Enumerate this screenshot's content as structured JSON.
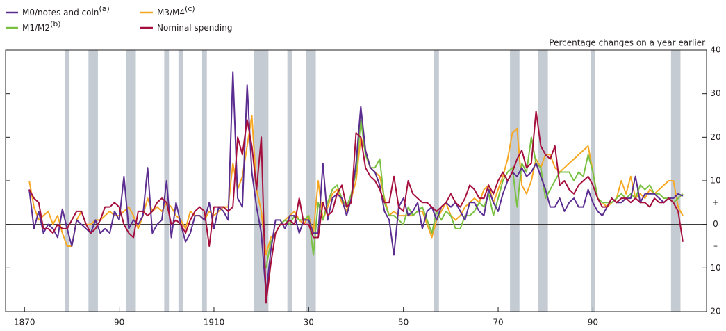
{
  "chart_data": {
    "type": "line",
    "y_axis_label": "Percentage changes on a year earlier",
    "xlim": [
      1866,
      2014
    ],
    "xticks": [
      {
        "value": 1870,
        "label": "1870"
      },
      {
        "value": 1890,
        "label": "90"
      },
      {
        "value": 1910,
        "label": "1910"
      },
      {
        "value": 1930,
        "label": "30"
      },
      {
        "value": 1950,
        "label": "50"
      },
      {
        "value": 1970,
        "label": "70"
      },
      {
        "value": 1990,
        "label": "90"
      }
    ],
    "ylim": [
      -20,
      40
    ],
    "yticks": [
      40,
      30,
      20,
      10,
      0,
      {
        "value": -10,
        "label": "10"
      },
      {
        "value": -20,
        "label": "20"
      }
    ],
    "sign_labels": [
      {
        "value": 5,
        "label": "+"
      },
      {
        "value": -5,
        "label": "–"
      }
    ],
    "shading_color": "#c4cbd2",
    "shaded_periods": [
      [
        1878.5,
        1879.5
      ],
      [
        1883.5,
        1885.5
      ],
      [
        1891.5,
        1893.5
      ],
      [
        1899.5,
        1900.5
      ],
      [
        1902.5,
        1903.5
      ],
      [
        1907.5,
        1908.5
      ],
      [
        1918.5,
        1921.5
      ],
      [
        1925.5,
        1926.5
      ],
      [
        1929.5,
        1931.5
      ],
      [
        1956.5,
        1957.5
      ],
      [
        1972.5,
        1974.5
      ],
      [
        1978.5,
        1980.5
      ],
      [
        1989.5,
        1990.5
      ],
      [
        2006.5,
        2008.5
      ]
    ],
    "x": [
      1871,
      1872,
      1873,
      1874,
      1875,
      1876,
      1877,
      1878,
      1879,
      1880,
      1881,
      1882,
      1883,
      1884,
      1885,
      1886,
      1887,
      1888,
      1889,
      1890,
      1891,
      1892,
      1893,
      1894,
      1895,
      1896,
      1897,
      1898,
      1899,
      1900,
      1901,
      1902,
      1903,
      1904,
      1905,
      1906,
      1907,
      1908,
      1909,
      1910,
      1911,
      1912,
      1913,
      1914,
      1915,
      1916,
      1917,
      1918,
      1919,
      1920,
      1921,
      1922,
      1923,
      1924,
      1925,
      1926,
      1927,
      1928,
      1929,
      1930,
      1931,
      1932,
      1933,
      1934,
      1935,
      1936,
      1937,
      1938,
      1939,
      1940,
      1941,
      1942,
      1943,
      1944,
      1945,
      1946,
      1947,
      1948,
      1949,
      1950,
      1951,
      1952,
      1953,
      1954,
      1955,
      1956,
      1957,
      1958,
      1959,
      1960,
      1961,
      1962,
      1963,
      1964,
      1965,
      1966,
      1967,
      1968,
      1969,
      1970,
      1971,
      1972,
      1973,
      1974,
      1975,
      1976,
      1977,
      1978,
      1979,
      1980,
      1981,
      1982,
      1983,
      1984,
      1985,
      1986,
      1987,
      1988,
      1989,
      1990,
      1991,
      1992,
      1993,
      1994,
      1995,
      1996,
      1997,
      1998,
      1999,
      2000,
      2001,
      2002,
      2003,
      2004,
      2005,
      2006,
      2007,
      2008,
      2009
    ],
    "series": [
      {
        "name": "M0/notes and coin",
        "note": "(a)",
        "color": "#5c2d91",
        "values": [
          8,
          -1,
          3,
          -2,
          0,
          -1,
          -3,
          3.5,
          -1,
          -5,
          1,
          0,
          -1,
          -2,
          1,
          -2,
          -1,
          -2,
          3,
          1,
          11,
          -1,
          1,
          0,
          2,
          13,
          -2,
          0,
          1,
          10,
          -3,
          5,
          0,
          -4,
          -2,
          2,
          2,
          1,
          5,
          -1,
          4,
          3,
          1,
          35,
          6,
          4,
          32,
          12,
          4,
          -2,
          -16,
          -6,
          1,
          1,
          -1,
          2,
          2,
          -2,
          1,
          1,
          -2,
          -2,
          14,
          1,
          6,
          7,
          6,
          2,
          6,
          14,
          27,
          17,
          13,
          12,
          9,
          3,
          1,
          -7,
          4,
          6,
          2,
          3,
          5,
          -1,
          3,
          4,
          1,
          4,
          5,
          4,
          5,
          3,
          1,
          5,
          5,
          3,
          2,
          8,
          5,
          3,
          7,
          10,
          12,
          11,
          13,
          11,
          12,
          14,
          11,
          8,
          4,
          4,
          6,
          3,
          5,
          6,
          4,
          4,
          8,
          5,
          3,
          2,
          4,
          6,
          5,
          5,
          6,
          6,
          11,
          5,
          7,
          7,
          7,
          6,
          5,
          6,
          6,
          7,
          6.5
        ]
      },
      {
        "name": "M1/M2",
        "note": "(b)",
        "color": "#7ac143",
        "values": [
          null,
          null,
          null,
          null,
          null,
          null,
          null,
          null,
          null,
          null,
          null,
          null,
          null,
          null,
          null,
          null,
          null,
          null,
          null,
          null,
          null,
          null,
          null,
          null,
          null,
          null,
          null,
          null,
          null,
          null,
          null,
          null,
          null,
          null,
          null,
          null,
          null,
          null,
          null,
          null,
          null,
          null,
          null,
          null,
          null,
          null,
          null,
          null,
          null,
          null,
          -10,
          -4,
          -2,
          0,
          1,
          0,
          2,
          1,
          1,
          2,
          -7,
          5,
          1,
          5,
          8,
          9,
          6,
          4,
          7,
          12,
          24,
          16,
          13,
          13,
          15,
          5,
          2,
          2,
          1,
          0,
          4,
          2,
          3,
          4,
          1,
          -2,
          3,
          1,
          3,
          2,
          -1,
          -1,
          2,
          2,
          3,
          5,
          4,
          7,
          2,
          6,
          10,
          12,
          13,
          4,
          14,
          12,
          20,
          14,
          13,
          6,
          8,
          10,
          12,
          12,
          12,
          10,
          12,
          11,
          16,
          12,
          6,
          5,
          5,
          5,
          6,
          7,
          6,
          7,
          6,
          9,
          8,
          9,
          7,
          7,
          6,
          6,
          5,
          6,
          7
        ]
      },
      {
        "name": "M3/M4",
        "note": "(c)",
        "color": "#f7a823",
        "values": [
          10,
          4,
          1,
          2,
          3,
          0,
          2,
          -2,
          -5,
          -5,
          1,
          3,
          0,
          0,
          1,
          1,
          2,
          3,
          2,
          2,
          3,
          4,
          2,
          -1,
          2,
          6,
          3,
          4,
          3,
          5,
          4,
          2,
          1,
          -1,
          3,
          2,
          2,
          1,
          3,
          2,
          3,
          4,
          4,
          14,
          8,
          11,
          18,
          25,
          8,
          3,
          -7,
          -3,
          -2,
          0,
          1,
          2,
          3,
          1,
          0,
          2,
          -2,
          10,
          1,
          4,
          7,
          8,
          5,
          3,
          6,
          10,
          20,
          17,
          13,
          12,
          11,
          6,
          2,
          3,
          2,
          2,
          2,
          2,
          3,
          3,
          0,
          -3,
          1,
          3,
          5,
          2,
          1,
          2,
          4,
          5,
          6,
          5,
          8,
          9,
          5,
          8,
          11,
          15,
          21,
          22,
          9,
          7,
          10,
          15,
          13,
          16,
          16,
          13,
          12,
          13,
          14,
          15,
          16,
          17,
          18,
          12,
          6,
          5,
          4,
          5,
          6,
          10,
          7,
          11,
          6,
          7,
          6,
          8,
          7,
          8,
          9,
          10,
          10,
          4,
          2
        ]
      },
      {
        "name": "Nominal spending",
        "color": "#a50f3d",
        "values": [
          8,
          6,
          5,
          -1,
          -1,
          -2,
          0,
          -1,
          -1,
          1,
          3,
          3,
          0,
          -2,
          -1,
          1,
          4,
          4,
          5,
          4,
          0,
          -2,
          -3,
          3,
          3,
          2,
          3,
          5,
          6,
          5,
          0,
          1,
          0,
          -2,
          1,
          3,
          4,
          3,
          -5,
          4,
          4,
          4,
          3,
          4,
          20,
          16,
          24,
          18,
          8,
          20,
          -18,
          -9,
          -2,
          0,
          0,
          1,
          0,
          6,
          0,
          0,
          -3,
          -3,
          5,
          2,
          3,
          7,
          9,
          4,
          5,
          21,
          20,
          13,
          11,
          10,
          8,
          5,
          5,
          11,
          4,
          3,
          10,
          7,
          6,
          5,
          5,
          4,
          3,
          4,
          5,
          7,
          5,
          4,
          6,
          9,
          8,
          6,
          6,
          9,
          7,
          10,
          12,
          10,
          12,
          15,
          17,
          13,
          14,
          26,
          18,
          16,
          15,
          18,
          9,
          10,
          8,
          7,
          9,
          10,
          11,
          9,
          6,
          4,
          4,
          6,
          5,
          6,
          6,
          5,
          6,
          5,
          5,
          4,
          6,
          5,
          5,
          6,
          5,
          3,
          -4
        ]
      }
    ]
  }
}
